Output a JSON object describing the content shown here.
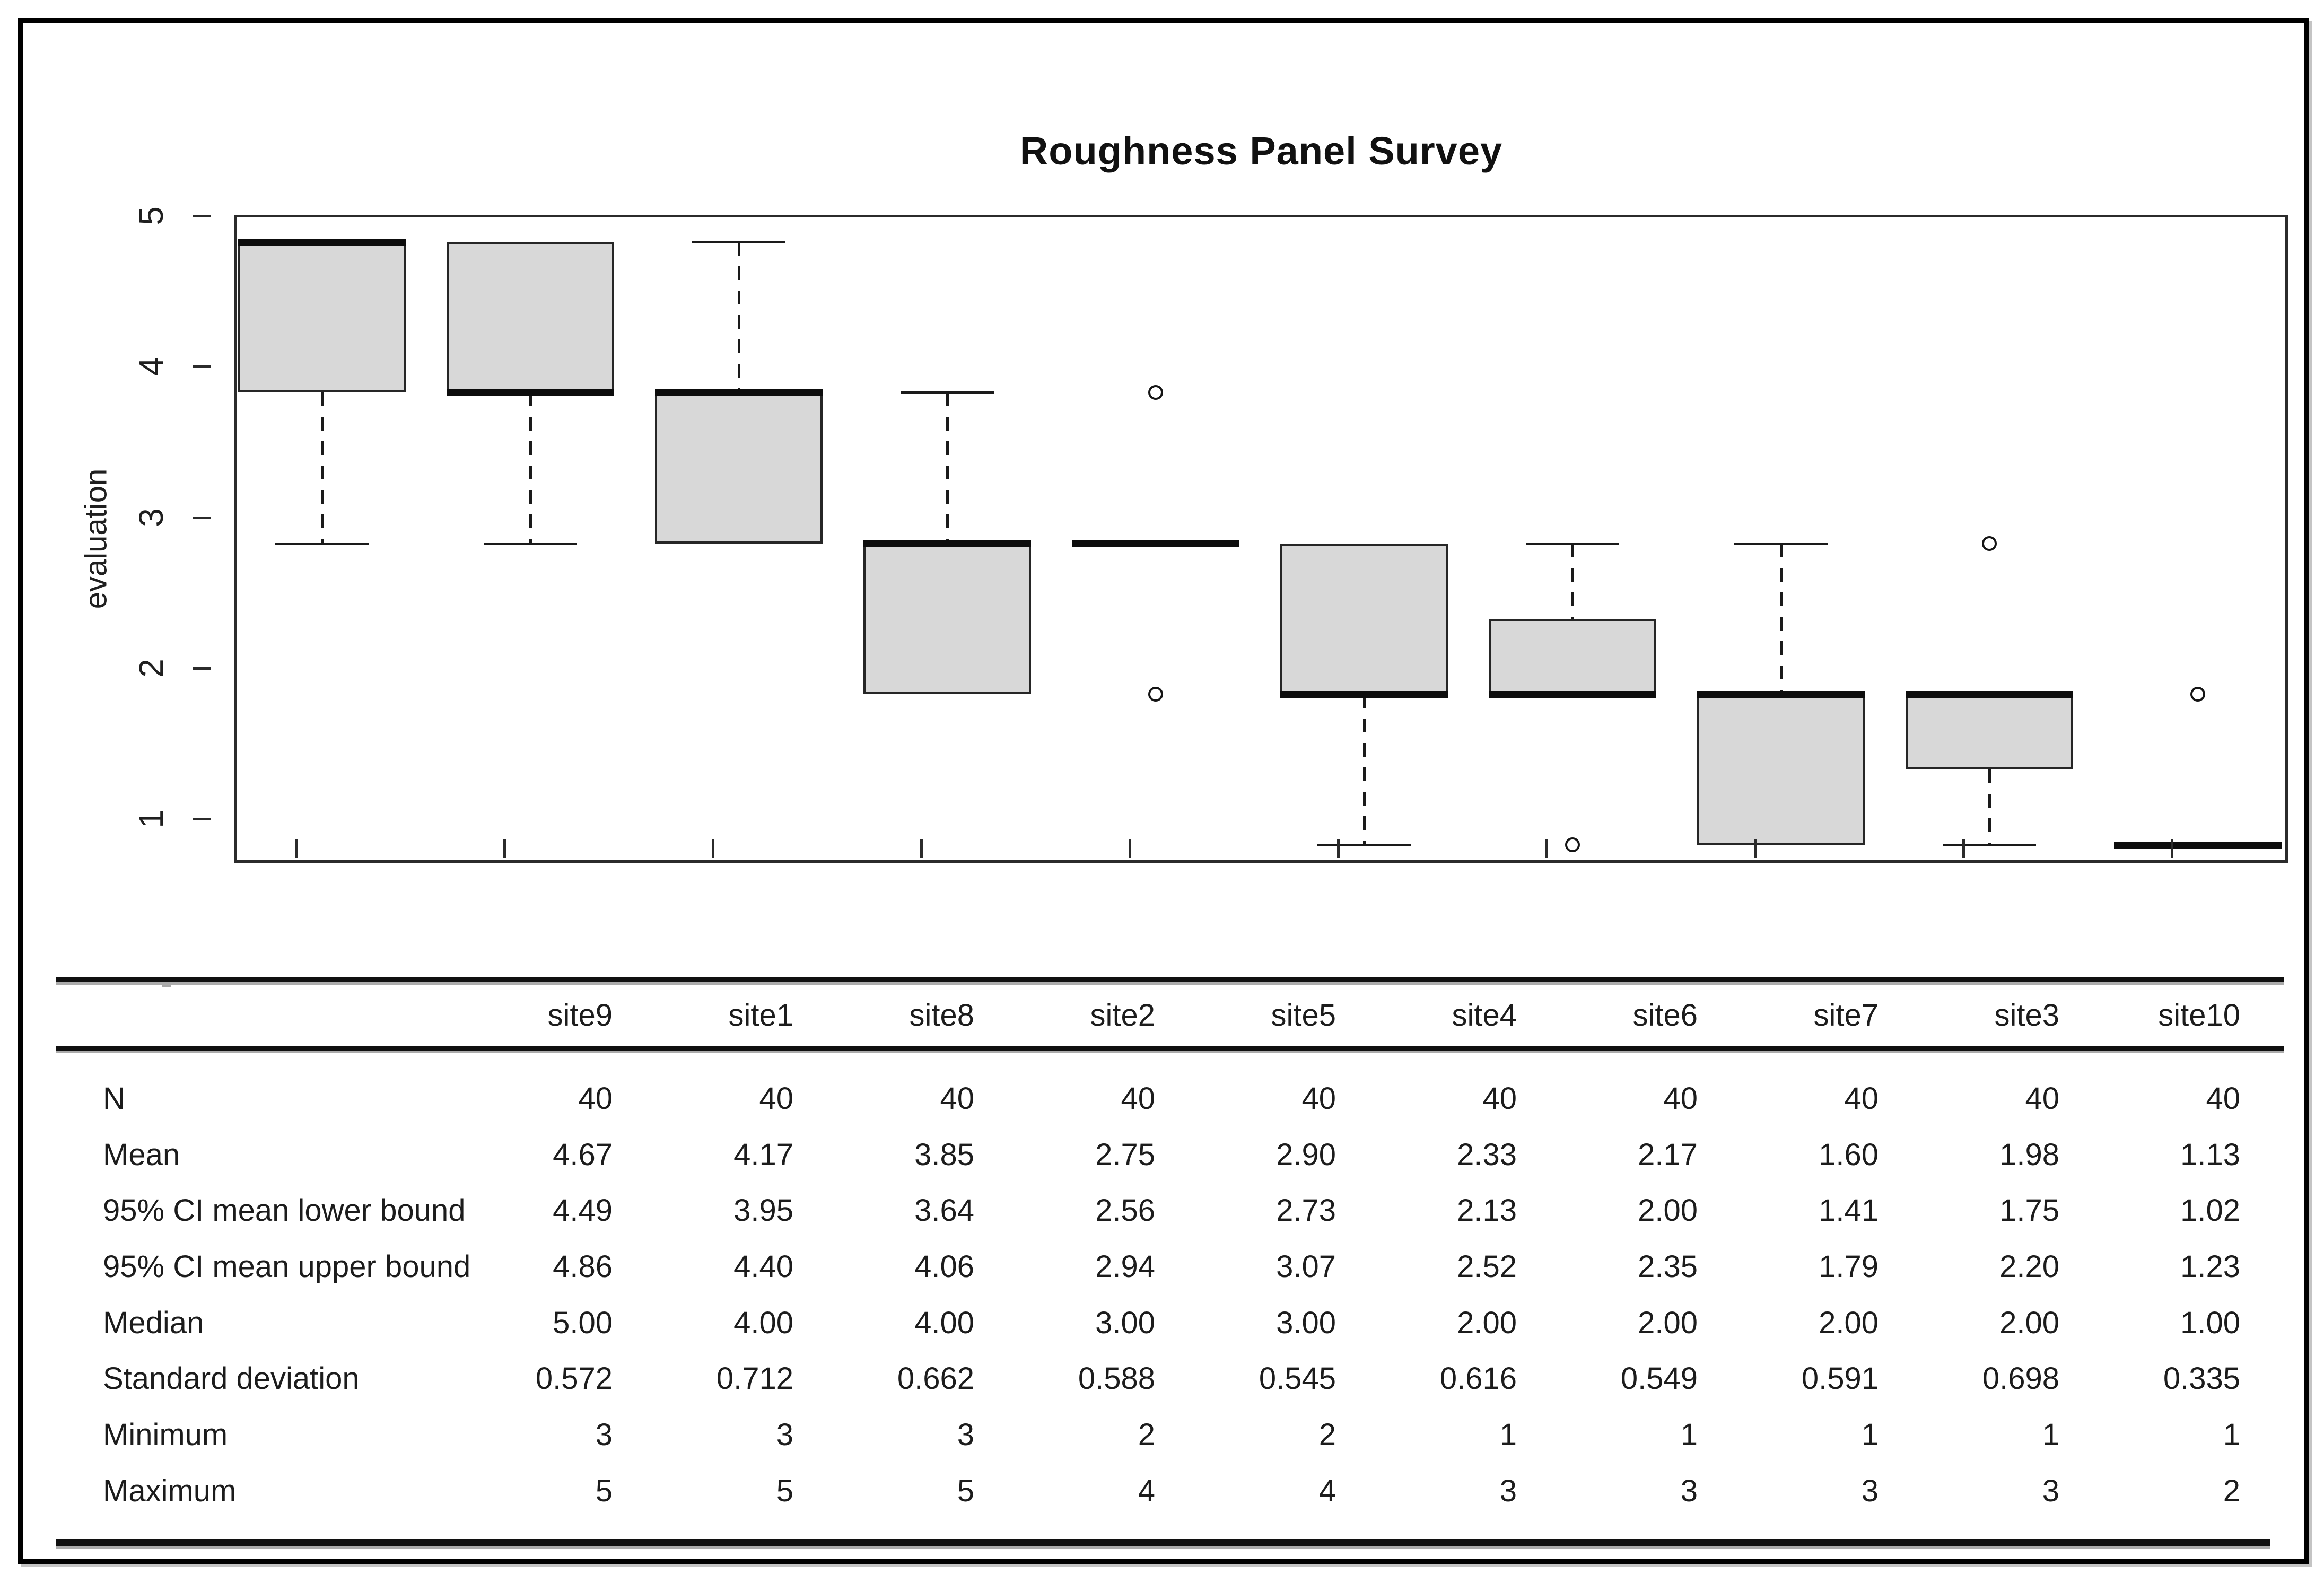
{
  "chart_data": {
    "type": "boxplot",
    "title": "Roughness Panel Survey",
    "ylabel": "evaluation",
    "ylim": [
      1,
      5
    ],
    "yticks": [
      "1",
      "2",
      "3",
      "4",
      "5"
    ],
    "grid": false,
    "box_fill_color": "#d8d8d8",
    "line_color": "#1a1a1a",
    "categories": [
      "site9",
      "site1",
      "site8",
      "site2",
      "site5",
      "site4",
      "site6",
      "site7",
      "site3",
      "site10"
    ],
    "series": [
      {
        "name": "site9",
        "q1": 4,
        "q3": 5,
        "median": 5,
        "whisker_low": 3,
        "whisker_high": 5,
        "outliers": []
      },
      {
        "name": "site1",
        "q1": 4,
        "q3": 5,
        "median": 4,
        "whisker_low": 3,
        "whisker_high": 5,
        "outliers": []
      },
      {
        "name": "site8",
        "q1": 3,
        "q3": 4,
        "median": 4,
        "whisker_low": 3,
        "whisker_high": 5,
        "outliers": []
      },
      {
        "name": "site2",
        "q1": 2,
        "q3": 3,
        "median": 3,
        "whisker_low": 2,
        "whisker_high": 4,
        "outliers": []
      },
      {
        "name": "site5",
        "q1": 3,
        "q3": 3,
        "median": 3,
        "whisker_low": 3,
        "whisker_high": 3,
        "outliers": [
          4,
          2
        ]
      },
      {
        "name": "site4",
        "q1": 2,
        "q3": 3,
        "median": 2,
        "whisker_low": 1,
        "whisker_high": 3,
        "outliers": []
      },
      {
        "name": "site6",
        "q1": 2,
        "q3": 2.5,
        "median": 2,
        "whisker_low": 2,
        "whisker_high": 3,
        "outliers": [
          1
        ]
      },
      {
        "name": "site7",
        "q1": 1,
        "q3": 2,
        "median": 2,
        "whisker_low": 1,
        "whisker_high": 3,
        "outliers": []
      },
      {
        "name": "site3",
        "q1": 1.5,
        "q3": 2,
        "median": 2,
        "whisker_low": 1,
        "whisker_high": 2,
        "outliers": [
          3
        ]
      },
      {
        "name": "site10",
        "q1": 1,
        "q3": 1,
        "median": 1,
        "whisker_low": 1,
        "whisker_high": 1,
        "outliers": [
          2
        ]
      }
    ]
  },
  "table": {
    "columns": [
      "site9",
      "site1",
      "site8",
      "site2",
      "site5",
      "site4",
      "site6",
      "site7",
      "site3",
      "site10"
    ],
    "rows": [
      {
        "label": "N",
        "values": [
          "40",
          "40",
          "40",
          "40",
          "40",
          "40",
          "40",
          "40",
          "40",
          "40"
        ]
      },
      {
        "label": "Mean",
        "values": [
          "4.67",
          "4.17",
          "3.85",
          "2.75",
          "2.90",
          "2.33",
          "2.17",
          "1.60",
          "1.98",
          "1.13"
        ]
      },
      {
        "label": "95% CI mean lower bound",
        "values": [
          "4.49",
          "3.95",
          "3.64",
          "2.56",
          "2.73",
          "2.13",
          "2.00",
          "1.41",
          "1.75",
          "1.02"
        ]
      },
      {
        "label": "95% CI mean upper bound",
        "values": [
          "4.86",
          "4.40",
          "4.06",
          "2.94",
          "3.07",
          "2.52",
          "2.35",
          "1.79",
          "2.20",
          "1.23"
        ]
      },
      {
        "label": "Median",
        "values": [
          "5.00",
          "4.00",
          "4.00",
          "3.00",
          "3.00",
          "2.00",
          "2.00",
          "2.00",
          "2.00",
          "1.00"
        ]
      },
      {
        "label": "Standard deviation",
        "values": [
          "0.572",
          "0.712",
          "0.662",
          "0.588",
          "0.545",
          "0.616",
          "0.549",
          "0.591",
          "0.698",
          "0.335"
        ]
      },
      {
        "label": "Minimum",
        "values": [
          "3",
          "3",
          "3",
          "2",
          "2",
          "1",
          "1",
          "1",
          "1",
          "1"
        ]
      },
      {
        "label": "Maximum",
        "values": [
          "5",
          "5",
          "5",
          "4",
          "4",
          "3",
          "3",
          "3",
          "3",
          "2"
        ]
      }
    ]
  },
  "stray_mark": "smudge-dash"
}
